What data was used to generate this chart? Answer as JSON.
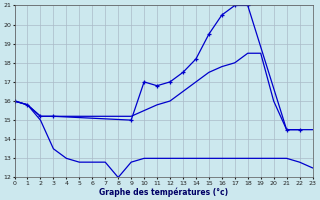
{
  "title": "Graphe des températures (°c)",
  "background_color": "#cce8ee",
  "grid_color": "#aabbc8",
  "line_color": "#0000cc",
  "ylim": [
    12,
    21
  ],
  "xlim": [
    0,
    23
  ],
  "yticks": [
    12,
    13,
    14,
    15,
    16,
    17,
    18,
    19,
    20,
    21
  ],
  "xticks": [
    0,
    1,
    2,
    3,
    4,
    5,
    6,
    7,
    8,
    9,
    10,
    11,
    12,
    13,
    14,
    15,
    16,
    17,
    18,
    19,
    20,
    21,
    22,
    23
  ],
  "series": [
    {
      "x": [
        0,
        1,
        2,
        3,
        4,
        5,
        6,
        7,
        8,
        9,
        10,
        11,
        12,
        13,
        14,
        15,
        16,
        17,
        18,
        19,
        20,
        21,
        22,
        23
      ],
      "y": [
        16.0,
        15.8,
        15.0,
        13.5,
        13.0,
        12.8,
        12.8,
        12.8,
        12.0,
        12.8,
        13.0,
        13.0,
        13.0,
        13.0,
        13.0,
        13.0,
        13.0,
        13.0,
        13.0,
        13.0,
        13.0,
        13.0,
        12.8,
        12.5
      ],
      "has_markers": false
    },
    {
      "x": [
        0,
        1,
        2,
        3,
        4,
        5,
        6,
        7,
        8,
        9,
        10,
        11,
        12,
        13,
        14,
        15,
        16,
        17,
        18,
        19,
        20,
        21,
        22,
        23
      ],
      "y": [
        16.0,
        15.8,
        15.2,
        15.2,
        15.2,
        15.2,
        15.2,
        15.2,
        15.2,
        15.2,
        15.5,
        15.8,
        16.0,
        16.5,
        17.0,
        17.5,
        17.8,
        18.0,
        18.5,
        18.5,
        16.0,
        14.5,
        14.5,
        14.5
      ],
      "has_markers": false
    },
    {
      "x": [
        0,
        1,
        2,
        3,
        9,
        10,
        11,
        12,
        13,
        14,
        15,
        16,
        17,
        18,
        21,
        22
      ],
      "y": [
        16.0,
        15.8,
        15.2,
        15.2,
        15.0,
        17.0,
        16.8,
        17.0,
        17.5,
        18.2,
        19.5,
        20.5,
        21.0,
        21.0,
        14.5,
        14.5
      ],
      "has_markers": true
    }
  ]
}
